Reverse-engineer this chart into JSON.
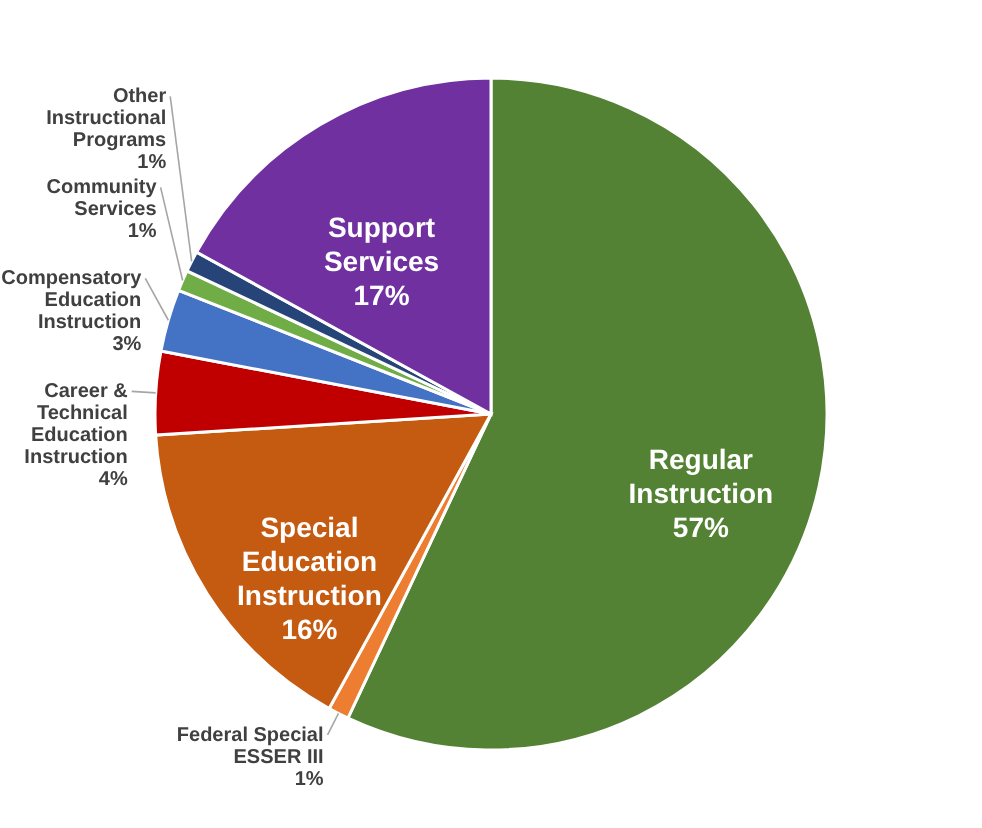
{
  "chart_data": {
    "type": "pie",
    "categories": [
      "Regular Instruction",
      "Federal Special ESSER III",
      "Special Education Instruction",
      "Career & Technical Education Instruction",
      "Compensatory Education Instruction",
      "Community Services",
      "Other Instructional Programs",
      "Support Services"
    ],
    "values": [
      57,
      1,
      16,
      4,
      3,
      1,
      1,
      17
    ],
    "value_labels": [
      "57%",
      "1%",
      "16%",
      "4%",
      "3%",
      "1%",
      "1%",
      "17%"
    ],
    "colors": [
      "#548235",
      "#ed7d31",
      "#c55a11",
      "#c00000",
      "#4472c4",
      "#70ad47",
      "#264478",
      "#7030a0"
    ]
  }
}
